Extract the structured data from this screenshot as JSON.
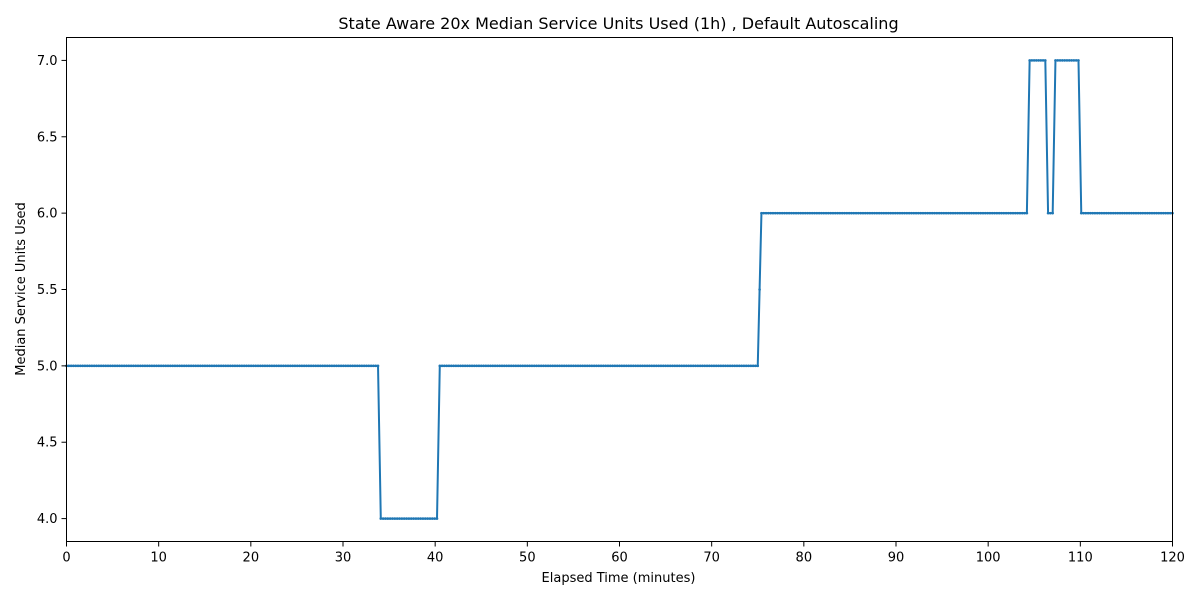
{
  "chart_data": {
    "type": "line",
    "title": "State Aware 20x Median Service Units Used (1h) , Default Autoscaling",
    "xlabel": "Elapsed Time (minutes)",
    "ylabel": "Median Service Units Used",
    "xlim": [
      0,
      120
    ],
    "ylim": [
      3.85,
      7.15
    ],
    "xticks": [
      0,
      10,
      20,
      30,
      40,
      50,
      60,
      70,
      80,
      90,
      100,
      110,
      120
    ],
    "xtick_labels": [
      "0",
      "10",
      "20",
      "30",
      "40",
      "50",
      "60",
      "70",
      "80",
      "90",
      "100",
      "110",
      "120"
    ],
    "yticks": [
      4.0,
      4.5,
      5.0,
      5.5,
      6.0,
      6.5,
      7.0
    ],
    "ytick_labels": [
      "4.0",
      "4.5",
      "5.0",
      "5.5",
      "6.0",
      "6.5",
      "7.0"
    ],
    "grid": false,
    "legend": "none",
    "series": [
      {
        "color": "#1f77b4",
        "marker": "dot",
        "x": [
          0,
          33.8,
          34.1,
          40.2,
          40.5,
          75.0,
          75.4,
          104.2,
          104.5,
          106.2,
          106.5,
          107.0,
          107.3,
          109.8,
          110.1,
          120
        ],
        "values": [
          5.0,
          5.0,
          4.0,
          4.0,
          5.0,
          5.0,
          6.0,
          6.0,
          7.0,
          7.0,
          6.0,
          6.0,
          7.0,
          7.0,
          6.0,
          6.0
        ]
      }
    ]
  }
}
